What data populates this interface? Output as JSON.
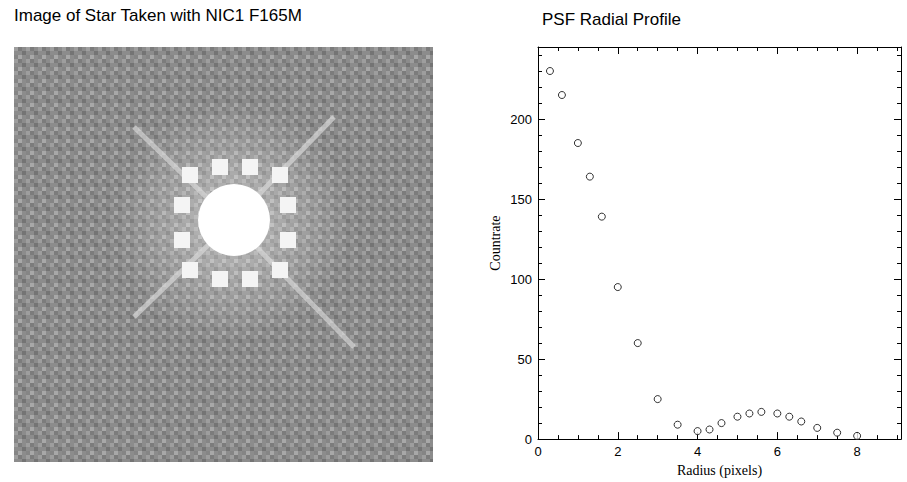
{
  "image": {
    "title": "Image of Star Taken with NIC1 F165M"
  },
  "chart_data": {
    "type": "scatter",
    "title": "PSF Radial Profile",
    "x_label": "Radius (pixels)",
    "y_label": "Countrate",
    "x": [
      0.3,
      0.6,
      1.0,
      1.3,
      1.6,
      2.0,
      2.5,
      3.0,
      3.5,
      4.0,
      4.3,
      4.6,
      5.0,
      5.3,
      5.6,
      6.0,
      6.3,
      6.6,
      7.0,
      7.5,
      8.0
    ],
    "values": [
      230,
      215,
      185,
      164,
      139,
      95,
      60,
      25,
      9,
      5,
      6,
      10,
      14,
      16,
      17,
      16,
      14,
      11,
      7,
      4,
      2
    ],
    "xlim": [
      0,
      9.1
    ],
    "xticks": [
      0,
      2,
      4,
      6,
      8
    ],
    "ylim": [
      0,
      245
    ],
    "yticks": [
      0,
      50,
      100,
      150,
      200
    ],
    "grid": false,
    "marker": "circle",
    "color": "#000000"
  }
}
